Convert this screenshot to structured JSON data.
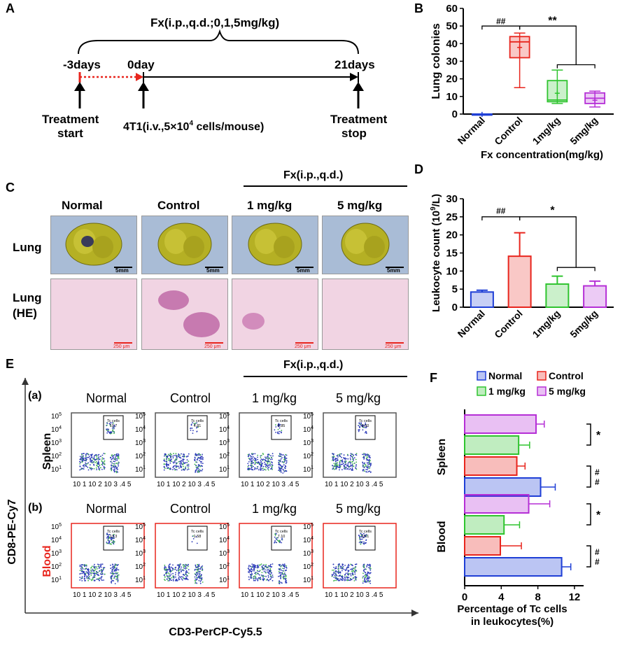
{
  "panels": {
    "A": "A",
    "B": "B",
    "C": "C",
    "D": "D",
    "E": "E",
    "F": "F"
  },
  "panelA": {
    "title": "Fx(i.p.,q.d.;0,1,5mg/kg)",
    "day_start": "-3days",
    "day_zero": "0day",
    "day_end": "21days",
    "treatment_start": [
      "Treatment",
      "start"
    ],
    "injection": "4T1(i.v.,5×10",
    "injection_exp": "4",
    "injection_tail": " cells/mouse)",
    "treatment_stop": [
      "Treatment",
      "stop"
    ],
    "colors": {
      "red": "#e8251d",
      "black": "#000000"
    }
  },
  "panelC": {
    "fx_label": "Fx(i.p.,q.d.)",
    "groups": [
      "Normal",
      "Control",
      "1 mg/kg",
      "5 mg/kg"
    ],
    "row_lung": "Lung",
    "row_he": [
      "Lung",
      "(HE)"
    ],
    "scale_lung": "5mm",
    "scale_he": "250 μm"
  },
  "panelE": {
    "fx_label": "Fx(i.p.,q.d.)",
    "groups": [
      "Normal",
      "Control",
      "1 mg/kg",
      "5 mg/kg"
    ],
    "row_a": "(a)",
    "row_b": "(b)",
    "spleen": "Spleen",
    "blood": "Blood",
    "y_axis": "CD8-PE-Cy7",
    "x_axis": "CD3-PerCP-Cy5.5",
    "gate_label": [
      "Tc cells",
      "Tc cells"
    ],
    "spleen_values": [
      "10.7",
      "4.81",
      "5.85",
      "8.50"
    ],
    "blood_values": [
      "13.3",
      "1.58",
      "7.10",
      "10.1"
    ],
    "y_ticks": [
      "10",
      "10",
      "10",
      "10",
      "10"
    ],
    "y_exps": [
      "5",
      "4",
      "3",
      "2",
      "1"
    ],
    "x_ticks_text": "10 1 10 2 10 3 .4 5"
  },
  "chart_data": [
    {
      "id": "B",
      "type": "box",
      "ylabel": "Lung colonies",
      "xlabel": "Fx concentration(mg/kg)",
      "categories": [
        "Normal",
        "Control",
        "1mg/kg",
        "5mg/kg"
      ],
      "ylim": [
        0,
        60
      ],
      "yticks": [
        0,
        10,
        20,
        30,
        40,
        50,
        60
      ],
      "colors": [
        "#1f3fd6",
        "#e8251d",
        "#2fc42f",
        "#b52fd6"
      ],
      "series": [
        {
          "name": "Normal",
          "min": 0,
          "q1": 0,
          "median": 0,
          "q3": 0,
          "max": 0,
          "mean": 0
        },
        {
          "name": "Control",
          "min": 15,
          "q1": 32,
          "median": 41,
          "q3": 44,
          "max": 46,
          "mean": 38
        },
        {
          "name": "1mg/kg",
          "min": 6,
          "q1": 7,
          "median": 8,
          "q3": 19,
          "max": 25,
          "mean": 12
        },
        {
          "name": "5mg/kg",
          "min": 4,
          "q1": 6,
          "median": 9,
          "q3": 12,
          "max": 13,
          "mean": 8
        }
      ],
      "significance": [
        "##",
        "**"
      ]
    },
    {
      "id": "D",
      "type": "bar",
      "ylabel": "Leukocyte count (10",
      "ylabel_exp": "9",
      "ylabel_tail": "/L)",
      "categories": [
        "Normal",
        "Control",
        "1mg/kg",
        "5mg/kg"
      ],
      "values": [
        4.2,
        14.1,
        6.4,
        5.9
      ],
      "errors": [
        0.5,
        6.5,
        2.2,
        1.3
      ],
      "ylim": [
        0,
        30
      ],
      "yticks": [
        0,
        5,
        10,
        15,
        20,
        25,
        30
      ],
      "colors": [
        "#1f3fd6",
        "#e8251d",
        "#2fc42f",
        "#b52fd6"
      ],
      "significance": [
        "##",
        "*"
      ]
    },
    {
      "id": "F",
      "type": "bar",
      "orientation": "horizontal",
      "legend": [
        "Normal",
        "Control",
        "1 mg/kg",
        "5 mg/kg"
      ],
      "colors": [
        "#1f3fd6",
        "#e8251d",
        "#2fc42f",
        "#b52fd6"
      ],
      "groups": [
        "Spleen",
        "Blood"
      ],
      "series": [
        {
          "name": "5 mg/kg",
          "spleen": 7.8,
          "blood": 7.0
        },
        {
          "name": "1 mg/kg",
          "spleen": 5.9,
          "blood": 4.3
        },
        {
          "name": "Control",
          "spleen": 5.7,
          "blood": 3.9
        },
        {
          "name": "Normal",
          "spleen": 8.3,
          "blood": 10.6
        }
      ],
      "errors": {
        "spleen": [
          0.9,
          1.2,
          0.9,
          1.6
        ],
        "blood": [
          2.3,
          1.7,
          2.3,
          1.0
        ]
      },
      "xlim": [
        0,
        13
      ],
      "xticks": [
        0,
        4,
        8,
        12
      ],
      "xlabel": [
        "Percentage of Tc cells",
        "in leukocytes(%)"
      ],
      "significance": [
        "*",
        "#",
        "#",
        "*",
        "#",
        "#"
      ]
    }
  ]
}
